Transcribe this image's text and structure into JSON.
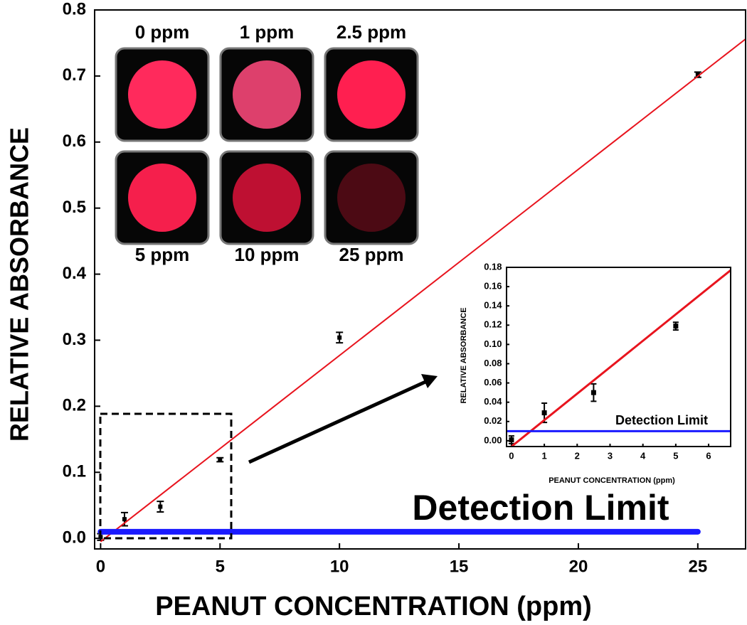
{
  "chart_data": [
    {
      "type": "scatter",
      "x_label": "PEANUT CONCENTRATION (ppm)",
      "y_label": "RELATIVE ABSORBANCE",
      "annotation": "Detection Limit",
      "xlim": [
        -0.25,
        27
      ],
      "ylim": [
        -0.016,
        0.8
      ],
      "xticks": [
        0,
        5,
        10,
        15,
        20,
        25
      ],
      "yticks": [
        {
          "value": 0,
          "label": "0.0"
        },
        0.1,
        0.2,
        0.3,
        0.4,
        0.5,
        0.6,
        0.7,
        0.8
      ],
      "series": [
        {
          "type": "scatter",
          "color": "#000000",
          "x": [
            0,
            1,
            2.5,
            5,
            10,
            25
          ],
          "values": [
            0.002,
            0.029,
            0.048,
            0.119,
            0.304,
            0.702
          ],
          "errors": [
            0.005,
            0.01,
            0.008,
            0.003,
            0.008,
            0.004
          ]
        },
        {
          "type": "line",
          "color": "#e8141e",
          "x": [
            0,
            27
          ],
          "values": [
            -0.005,
            0.756
          ]
        },
        {
          "type": "line",
          "color": "#1a1aff",
          "x": [
            0,
            25
          ],
          "values": [
            0.01,
            0.01
          ]
        }
      ],
      "image_labels": [
        "0 ppm",
        "1 ppm",
        "2.5 ppm",
        "5 ppm",
        "10 ppm",
        "25 ppm"
      ]
    },
    {
      "type": "scatter",
      "x_label": "PEANUT CONCENTRATION (ppm)",
      "y_label": "RELATIVE ABSORBANCE",
      "annotation": "Detection Limit",
      "xlim": [
        -0.15,
        6.67
      ],
      "ylim": [
        -0.006,
        0.18
      ],
      "xticks": [
        0,
        1,
        2,
        3,
        4,
        5,
        6
      ],
      "yticks": [
        {
          "value": 0,
          "label": "0.00"
        },
        {
          "value": 0.02,
          "label": "0.02"
        },
        {
          "value": 0.04,
          "label": "0.04"
        },
        {
          "value": 0.06,
          "label": "0.06"
        },
        {
          "value": 0.08,
          "label": "0.08"
        },
        {
          "value": 0.1,
          "label": "0.10"
        },
        {
          "value": 0.12,
          "label": "0.12"
        },
        {
          "value": 0.14,
          "label": "0.14"
        },
        {
          "value": 0.16,
          "label": "0.16"
        },
        {
          "value": 0.18,
          "label": "0.18"
        }
      ],
      "series": [
        {
          "type": "scatter",
          "color": "#000000",
          "x": [
            0,
            1,
            2.5,
            5
          ],
          "values": [
            0.001,
            0.029,
            0.05,
            0.119
          ],
          "errors": [
            0.004,
            0.01,
            0.009,
            0.004
          ]
        },
        {
          "type": "line",
          "color": "#e8141e",
          "x": [
            0,
            6.67
          ],
          "values": [
            -0.006,
            0.177
          ]
        },
        {
          "type": "line",
          "color": "#1a1aff",
          "x": [
            -0.15,
            6.67
          ],
          "values": [
            0.01,
            0.01
          ]
        }
      ]
    }
  ]
}
